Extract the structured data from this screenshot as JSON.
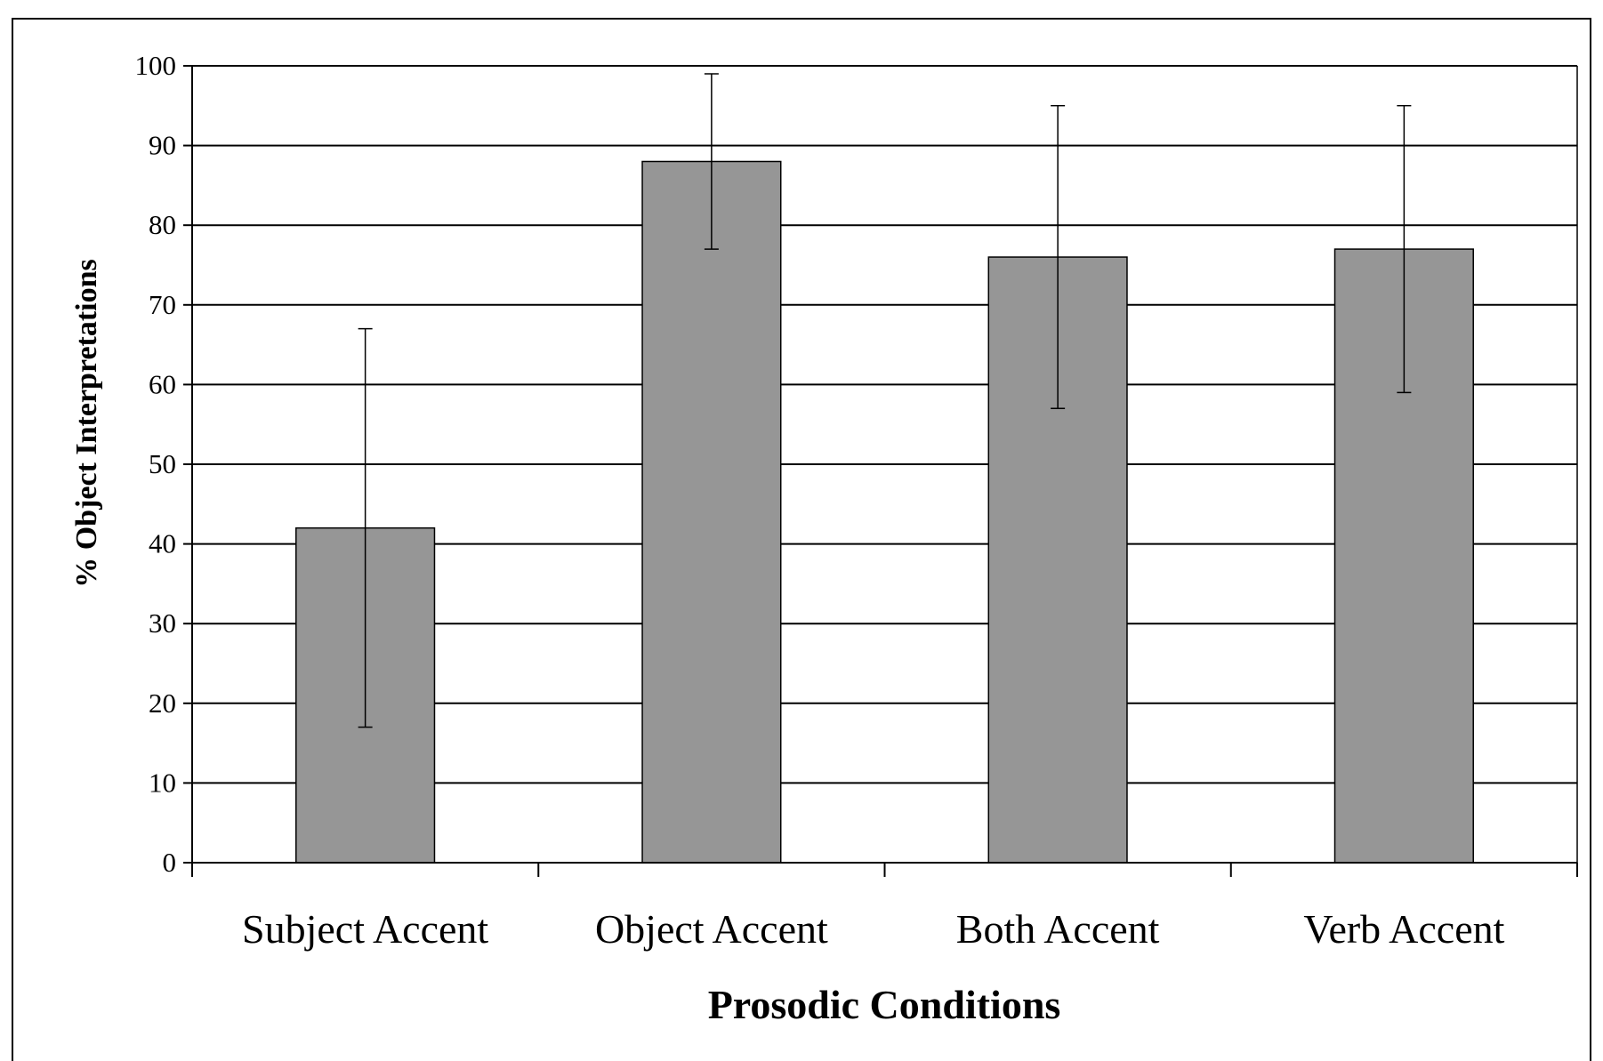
{
  "chart_data": {
    "type": "bar",
    "title": "",
    "xlabel": "Prosodic Conditions",
    "ylabel": "% Object Interpretations",
    "categories": [
      "Subject Accent",
      "Object Accent",
      "Both Accent",
      "Verb Accent"
    ],
    "values": [
      42,
      88,
      76,
      77
    ],
    "error_bars": [
      {
        "low": 17,
        "high": 67
      },
      {
        "low": 77,
        "high": 99
      },
      {
        "low": 57,
        "high": 95
      },
      {
        "low": 59,
        "high": 95
      }
    ],
    "ylim": [
      0,
      100
    ],
    "yticks": [
      0,
      10,
      20,
      30,
      40,
      50,
      60,
      70,
      80,
      90,
      100
    ],
    "grid": true,
    "legend": "none",
    "colors": {
      "bar": "#969696",
      "bar_edge": "#000000",
      "grid": "#000000"
    }
  }
}
